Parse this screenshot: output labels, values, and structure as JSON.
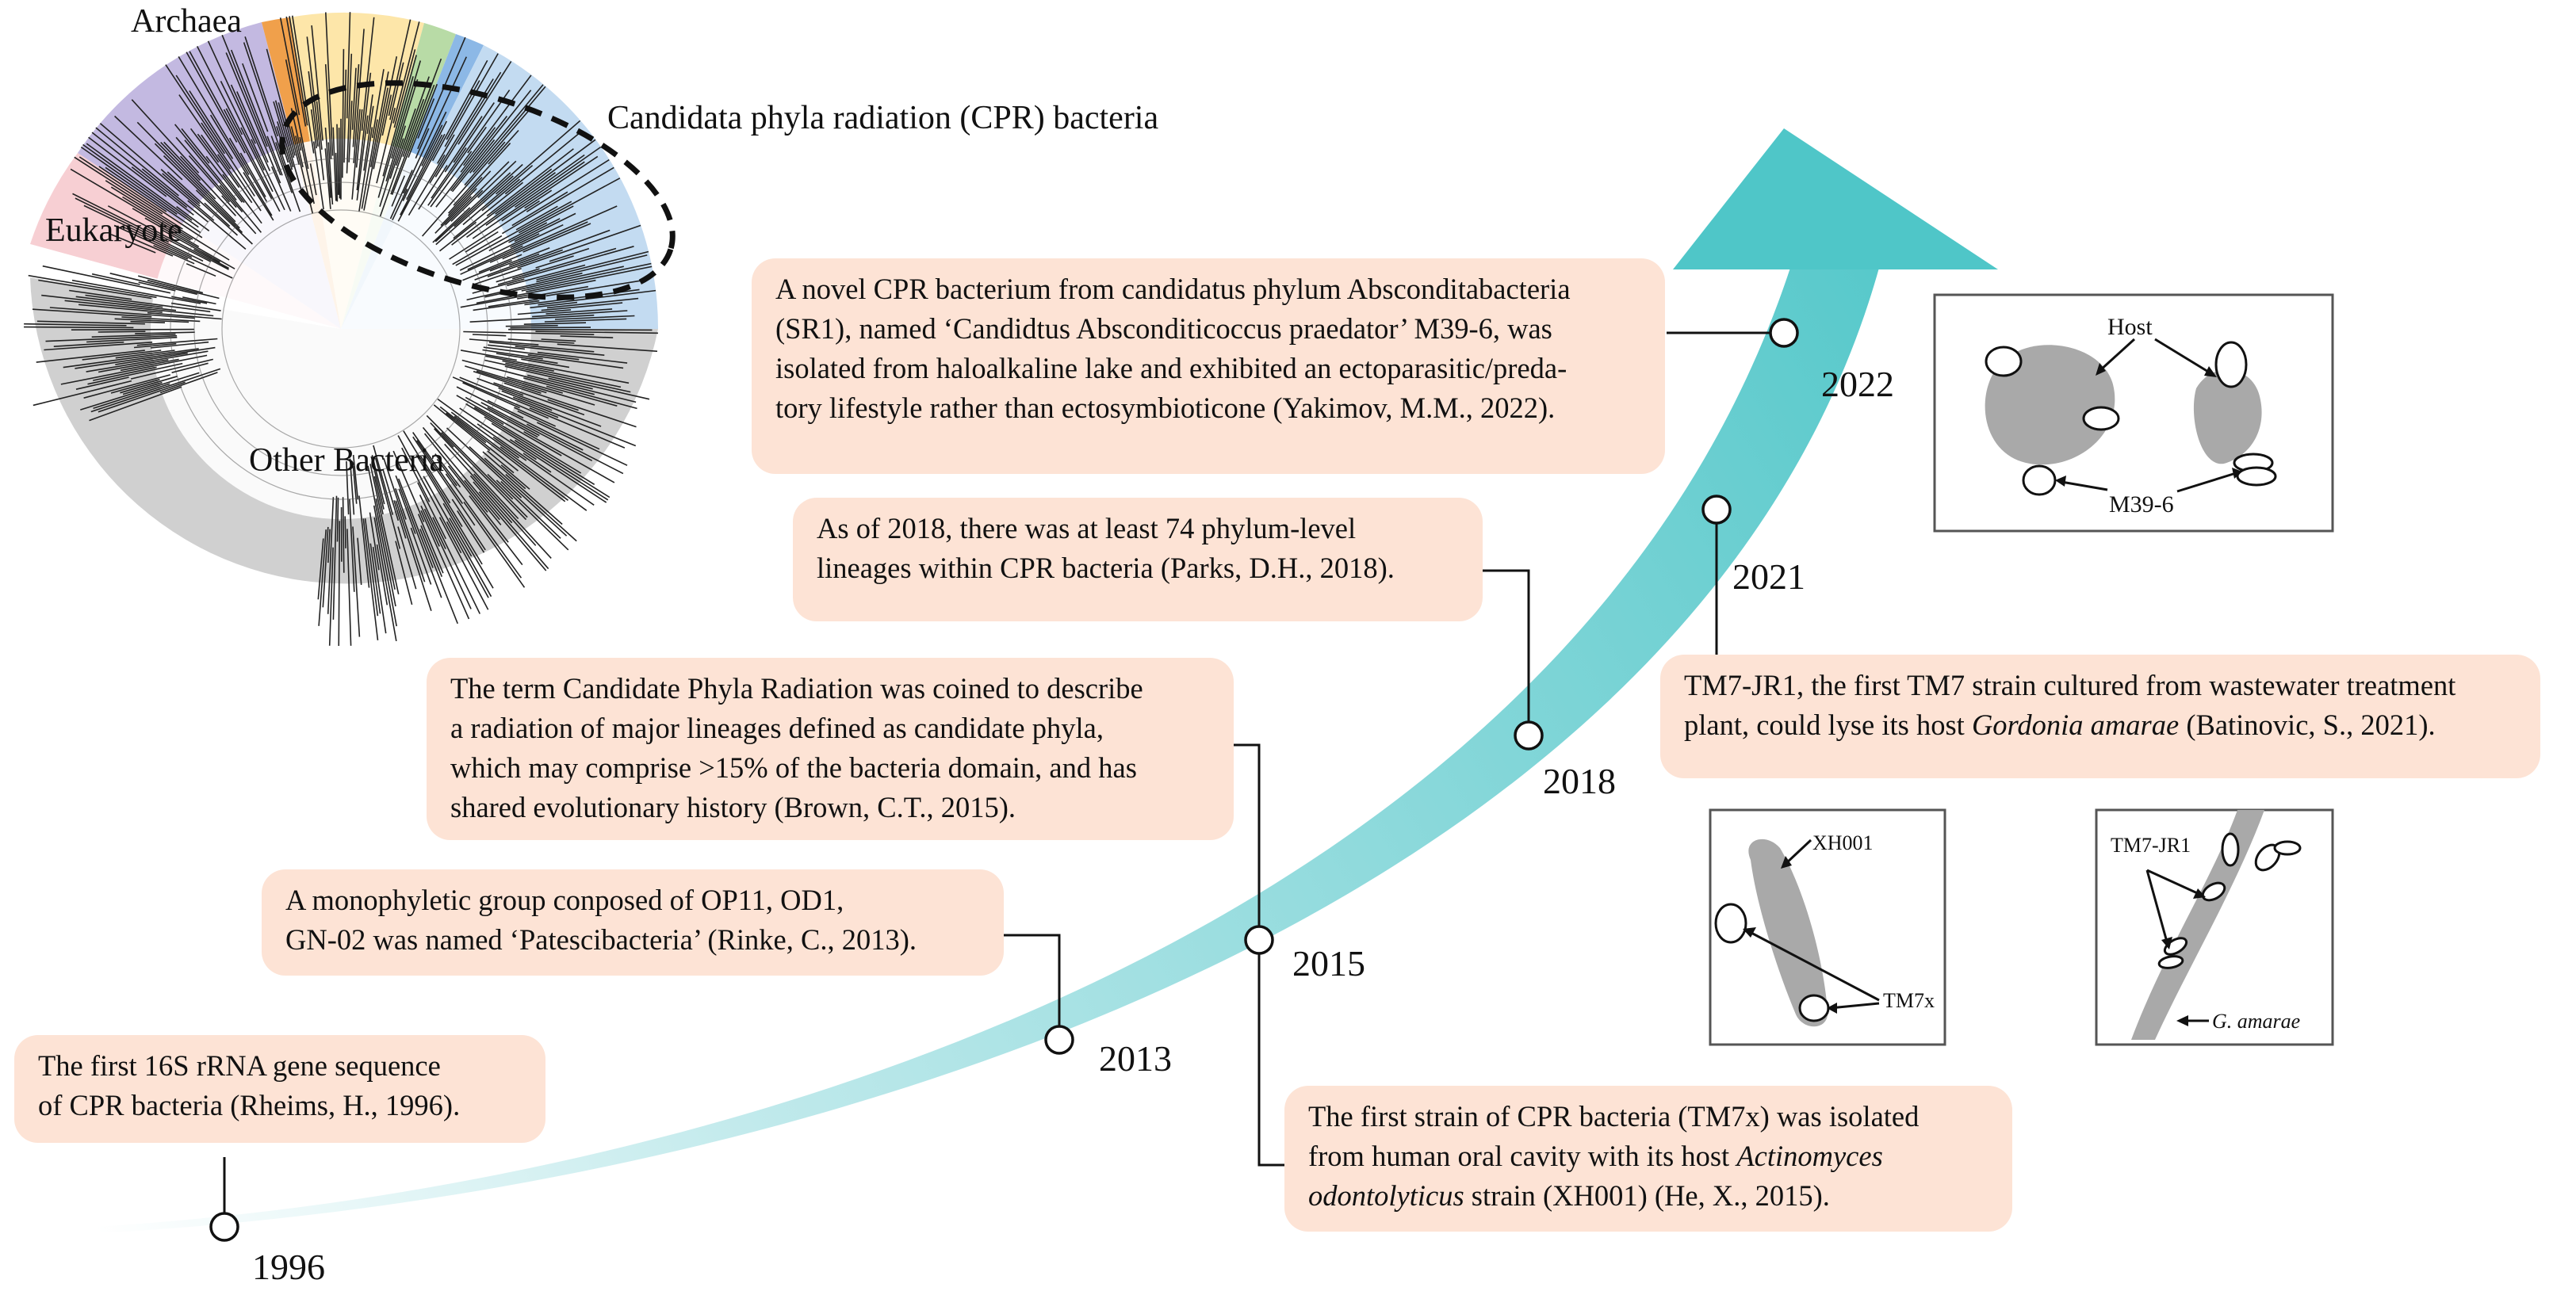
{
  "tree": {
    "archaea": "Archaea",
    "eukaryote": "Eukaryote",
    "other_bacteria": "Other Bacteria",
    "cpr": "Candidata phyla radiation (CPR) bacteria",
    "colors": {
      "archaea": "#a99bd4",
      "eukaryote": "#f2b6bc",
      "other_bacteria": "#c8c8c8",
      "cpr_yellow": "#fde29a",
      "cpr_blue": "#bcd7ef",
      "orange": "#f0a04b",
      "green": "#b8dba6",
      "blue": "#8cb8e6"
    }
  },
  "timeline": {
    "arrow_color": "#4fc6c8",
    "years": {
      "y1996": "1996",
      "y2013": "2013",
      "y2015": "2015",
      "y2018": "2018",
      "y2021": "2021",
      "y2022": "2022"
    }
  },
  "events": {
    "e1996": {
      "lines": [
        "The first 16S rRNA gene sequence",
        "of CPR bacteria (Rheims, H., 1996)."
      ]
    },
    "e2013": {
      "lines": [
        "A monophyletic group conposed of OP11, OD1,",
        "GN-02 was named ‘Patescibacteria’ (Rinke, C., 2013)."
      ]
    },
    "e2015a": {
      "lines": [
        "The term Candidate Phyla Radiation was coined to describe",
        "a radiation of major lineages defined as candidate phyla,",
        "which may comprise >15% of the bacteria domain,  and has",
        "shared evolutionary history (Brown, C.T., 2015)."
      ]
    },
    "e2015b": {
      "l1": "The first strain of CPR bacteria (TM7x) was isolated",
      "l2a": "from human oral cavity with its host ",
      "l2b": "Actinomyces",
      "l3a": "odontolyticus",
      "l3b": " strain (XH001) (He, X., 2015)."
    },
    "e2018": {
      "lines": [
        "As of 2018, there was at least 74 phylum-level",
        "lineages within CPR bacteria (Parks, D.H., 2018)."
      ]
    },
    "e2021": {
      "l1": "TM7-JR1, the first TM7 strain cultured from wastewater treatment",
      "l2a": "plant, could lyse its host ",
      "l2b": "Gordonia amarae",
      "l2c": " (Batinovic, S., 2021)."
    },
    "e2022": {
      "lines": [
        "A novel CPR bacterium from candidatus phylum Absconditabacteria",
        "(SR1),  named ‘Candidtus Absconditicoccus praedator’ M39-6, was",
        "isolated from haloalkaline lake and exhibited an ectoparasitic/preda-",
        "tory lifestyle rather than ectosymbioticone (Yakimov, M.M., 2022)."
      ]
    }
  },
  "panels": {
    "host": "Host",
    "m39": "M39-6",
    "xh001": "XH001",
    "tm7x": "TM7x",
    "tm7jr1": "TM7-JR1",
    "gamarae": "G. amarae"
  }
}
